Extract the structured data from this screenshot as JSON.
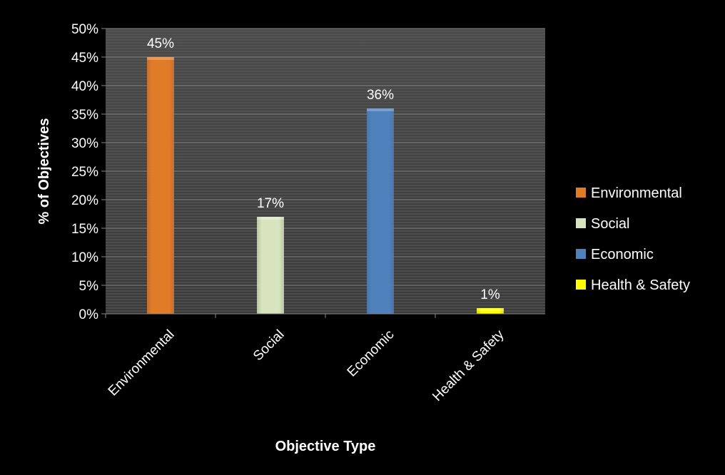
{
  "chart_data": {
    "type": "bar",
    "categories": [
      "Environmental",
      "Social",
      "Economic",
      "Health & Safety"
    ],
    "values": [
      45,
      17,
      36,
      1
    ],
    "data_labels": [
      "45%",
      "17%",
      "36%",
      "1%"
    ],
    "colors": [
      "#E07B28",
      "#D7E4BD",
      "#4F81BD",
      "#FFFF00"
    ],
    "title": "",
    "xlabel": "Objective Type",
    "ylabel": "% of Objectives",
    "ylim": [
      0,
      50
    ],
    "yticks": [
      "0%",
      "5%",
      "10%",
      "15%",
      "20%",
      "25%",
      "30%",
      "35%",
      "40%",
      "45%",
      "50%"
    ],
    "grid": true,
    "legend": {
      "placement": "right",
      "entries": [
        "Environmental",
        "Social",
        "Economic",
        "Health & Safety"
      ]
    }
  }
}
